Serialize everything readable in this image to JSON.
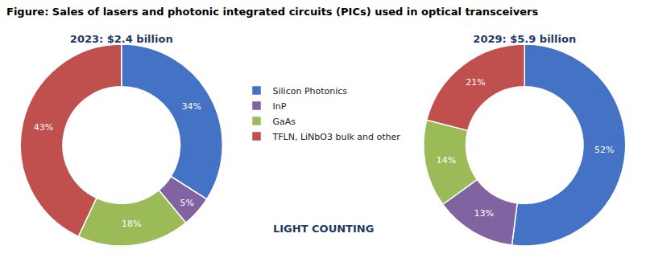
{
  "title": "Figure: Sales of lasers and photonic integrated circuits (PICs) used in optical transceivers",
  "chart_data": [
    {
      "type": "pie",
      "title": "2023: $2.4 billion",
      "categories": [
        "Silicon Photonics",
        "InP",
        "GaAs",
        "TFLN, LiNbO3 bulk and other"
      ],
      "values": [
        34,
        5,
        18,
        43
      ],
      "value_labels": [
        "34%",
        "5%",
        "18%",
        "43%"
      ],
      "colors": [
        "#4472C4",
        "#8064A2",
        "#9BBB59",
        "#C0504D"
      ],
      "data_labels": true,
      "legend": "center",
      "annotations": [
        "LIGHT COUNTING"
      ]
    },
    {
      "type": "pie",
      "title": "2029: $5.9 billion",
      "categories": [
        "Silicon Photonics",
        "InP",
        "GaAs",
        "TFLN, LiNbO3 bulk and other"
      ],
      "values": [
        52,
        13,
        14,
        21
      ],
      "value_labels": [
        "52%",
        "13%",
        "14%",
        "21%"
      ],
      "colors": [
        "#4472C4",
        "#8064A2",
        "#9BBB59",
        "#C0504D"
      ],
      "data_labels": true
    }
  ]
}
